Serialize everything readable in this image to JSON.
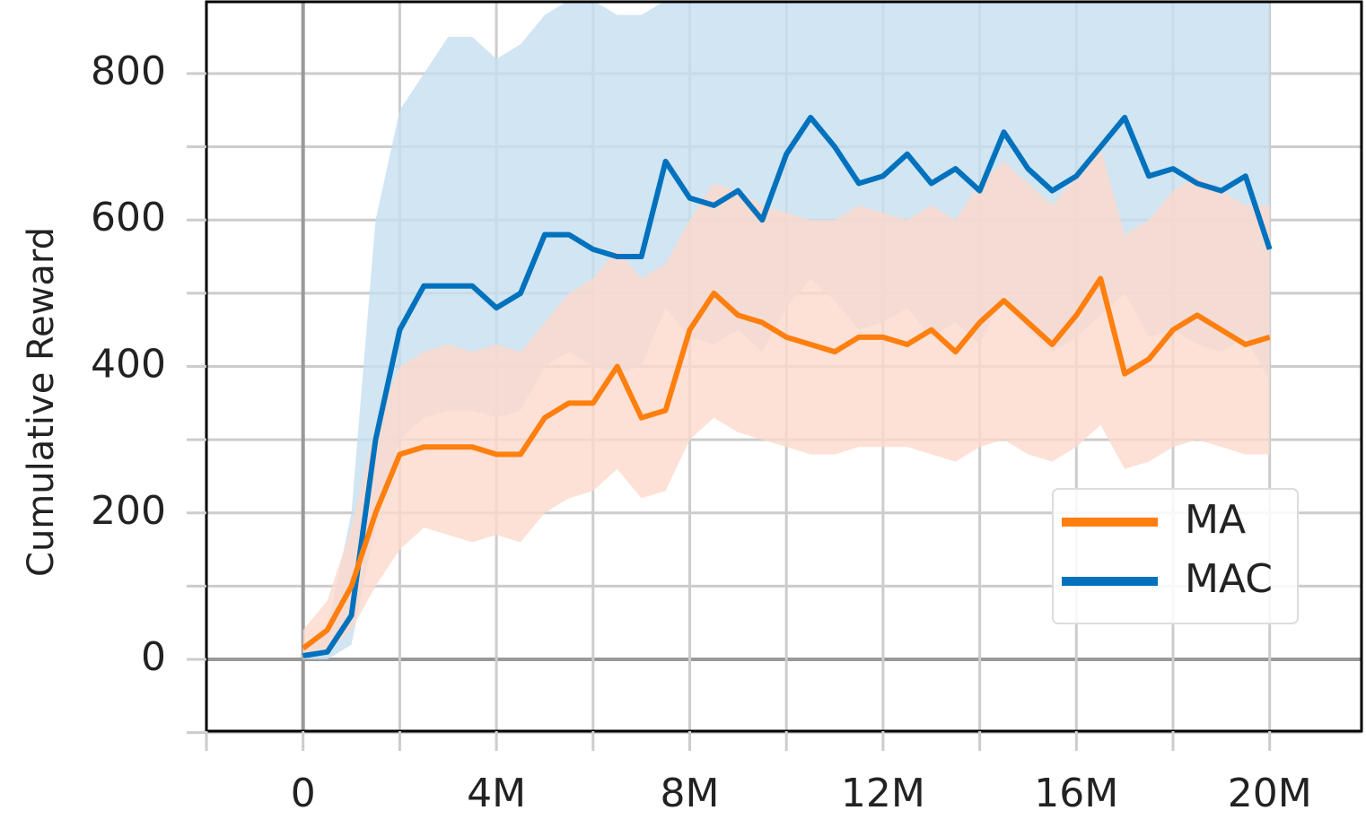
{
  "chart_data": {
    "type": "line",
    "ylabel": "Cumulative Reward",
    "x": [
      0,
      500000,
      1000000,
      1500000,
      2000000,
      2500000,
      3000000,
      3500000,
      4000000,
      4500000,
      5000000,
      5500000,
      6000000,
      6500000,
      7000000,
      7500000,
      8000000,
      8500000,
      9000000,
      9500000,
      10000000,
      10500000,
      11000000,
      11500000,
      12000000,
      12500000,
      13000000,
      13500000,
      14000000,
      14500000,
      15000000,
      15500000,
      16000000,
      16500000,
      17000000,
      17500000,
      18000000,
      18500000,
      19000000,
      19500000,
      20000000
    ],
    "series": [
      {
        "name": "MAC",
        "color": "#0072bd",
        "band_color": "#c6dff0",
        "values": [
          5,
          10,
          60,
          300,
          450,
          510,
          510,
          510,
          480,
          500,
          580,
          580,
          560,
          550,
          550,
          680,
          630,
          620,
          640,
          600,
          690,
          740,
          700,
          650,
          660,
          690,
          650,
          670,
          640,
          720,
          670,
          640,
          660,
          700,
          740,
          660,
          670,
          650,
          640,
          660,
          560
        ],
        "lower": [
          0,
          0,
          20,
          180,
          300,
          330,
          340,
          340,
          330,
          340,
          400,
          420,
          400,
          390,
          400,
          480,
          440,
          430,
          450,
          420,
          480,
          520,
          490,
          450,
          460,
          480,
          440,
          460,
          430,
          500,
          450,
          420,
          440,
          470,
          500,
          440,
          450,
          430,
          420,
          440,
          380
        ],
        "upper": [
          20,
          40,
          200,
          600,
          750,
          800,
          850,
          850,
          820,
          840,
          880,
          900,
          900,
          880,
          880,
          900,
          900,
          900,
          900,
          900,
          900,
          900,
          900,
          900,
          900,
          900,
          900,
          900,
          900,
          900,
          900,
          900,
          900,
          900,
          900,
          900,
          900,
          900,
          900,
          900,
          900
        ]
      },
      {
        "name": "MA",
        "color": "#ff7f0e",
        "band_color": "#fdd9cc",
        "values": [
          15,
          40,
          100,
          200,
          280,
          290,
          290,
          290,
          280,
          280,
          330,
          350,
          350,
          400,
          330,
          340,
          450,
          500,
          470,
          460,
          440,
          430,
          420,
          440,
          440,
          430,
          450,
          420,
          460,
          490,
          460,
          430,
          470,
          520,
          390,
          410,
          450,
          470,
          450,
          430,
          440
        ],
        "lower": [
          0,
          10,
          40,
          100,
          150,
          180,
          170,
          160,
          170,
          160,
          200,
          220,
          230,
          260,
          220,
          230,
          300,
          330,
          310,
          300,
          290,
          280,
          280,
          290,
          290,
          290,
          280,
          270,
          290,
          300,
          280,
          270,
          290,
          320,
          260,
          270,
          290,
          300,
          290,
          280,
          280
        ],
        "upper": [
          40,
          80,
          180,
          320,
          400,
          420,
          430,
          420,
          430,
          420,
          460,
          500,
          520,
          560,
          520,
          540,
          600,
          650,
          640,
          620,
          610,
          600,
          600,
          620,
          610,
          600,
          620,
          600,
          650,
          680,
          650,
          620,
          660,
          700,
          580,
          600,
          640,
          660,
          640,
          620,
          620
        ]
      }
    ],
    "legend_order": [
      1,
      0
    ],
    "legend": "lower right",
    "xlim": [
      -2000000,
      21900000
    ],
    "xticks": [
      0,
      {
        "value": 4000000,
        "label": "4M"
      },
      {
        "value": 8000000,
        "label": "8M"
      },
      {
        "value": 12000000,
        "label": "12M"
      },
      {
        "value": 16000000,
        "label": "16M"
      },
      {
        "value": 20000000,
        "label": "20M"
      }
    ],
    "xminorticks": [
      -2000000,
      2000000,
      6000000,
      10000000,
      14000000,
      18000000
    ],
    "ylim": [
      -98,
      898
    ],
    "yticks": [
      0,
      200,
      400,
      600,
      800
    ],
    "yminorticks": [
      -100,
      100,
      300,
      500,
      700
    ],
    "grid": true
  }
}
